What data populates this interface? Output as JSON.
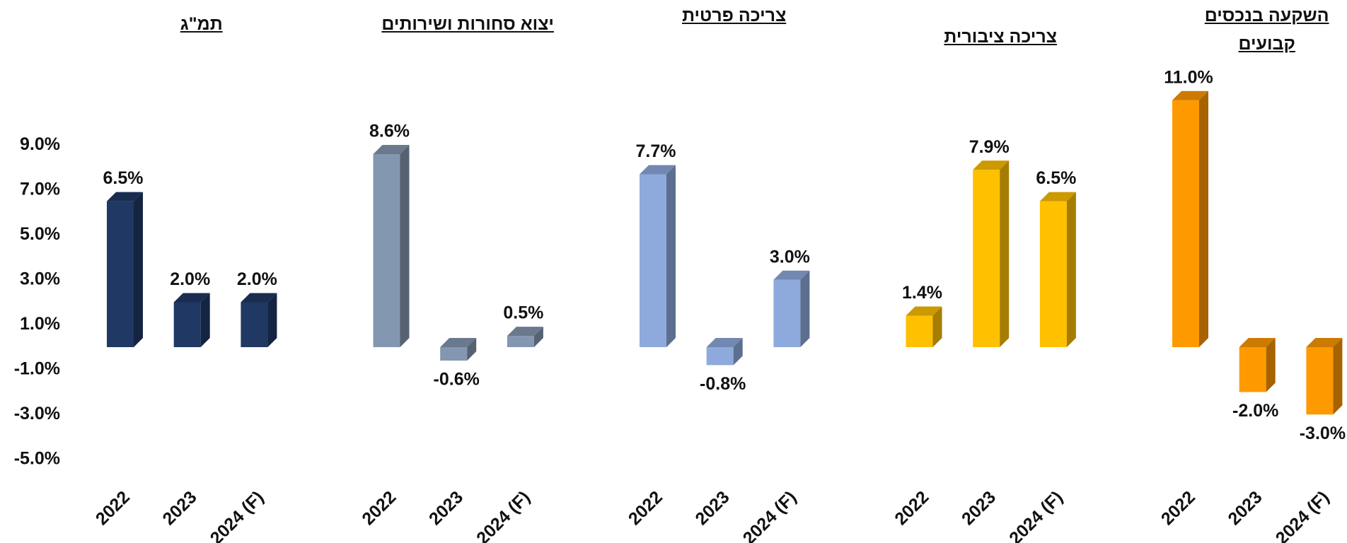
{
  "chart_data": [
    {
      "type": "bar3d",
      "title": "תמ\"ג",
      "categories": [
        "2022",
        "2023",
        "2024 (F)"
      ],
      "values": [
        6.5,
        2.0,
        2.0
      ],
      "value_labels": [
        "6.5%",
        "2.0%",
        "2.0%"
      ],
      "color": "#1f3864",
      "ylim": [
        -6,
        12
      ],
      "yticks": [
        {
          "value": 9,
          "label": "9.0%"
        },
        {
          "value": 7,
          "label": "7.0%"
        },
        {
          "value": 5,
          "label": "5.0%"
        },
        {
          "value": 3,
          "label": "3.0%"
        },
        {
          "value": 1,
          "label": "1.0%"
        },
        {
          "value": -1,
          "label": "-1.0%"
        },
        {
          "value": -3,
          "label": "-3.0%"
        },
        {
          "value": -5,
          "label": "-5.0%"
        }
      ]
    },
    {
      "type": "bar3d",
      "title": "יצוא סחורות ושירותים",
      "categories": [
        "2022",
        "2023",
        "2024 (F)"
      ],
      "values": [
        8.6,
        -0.6,
        0.5
      ],
      "value_labels": [
        "8.6%",
        "-0.6%",
        "0.5%"
      ],
      "color": "#8497b0",
      "ylim": [
        -6,
        12
      ]
    },
    {
      "type": "bar3d",
      "title": "צריכה פרטית",
      "categories": [
        "2022",
        "2023",
        "2024 (F)"
      ],
      "values": [
        7.7,
        -0.8,
        3.0
      ],
      "value_labels": [
        "7.7%",
        "-0.8%",
        "3.0%"
      ],
      "color": "#8eaadc",
      "ylim": [
        -6,
        12
      ]
    },
    {
      "type": "bar3d",
      "title": "צריכה ציבורית",
      "categories": [
        "2022",
        "2023",
        "2024 (F)"
      ],
      "values": [
        1.4,
        7.9,
        6.5
      ],
      "value_labels": [
        "1.4%",
        "7.9%",
        "6.5%"
      ],
      "color": "#ffc000",
      "ylim": [
        -6,
        12
      ]
    },
    {
      "type": "bar3d",
      "title": "השקעה בנכסים\nקבועים",
      "categories": [
        "2022",
        "2023",
        "2024 (F)"
      ],
      "values": [
        11.0,
        -2.0,
        -3.0
      ],
      "value_labels": [
        "11.0%",
        "-2.0%",
        "-3.0%"
      ],
      "color": "#ff9900",
      "ylim": [
        -6,
        12
      ]
    }
  ]
}
